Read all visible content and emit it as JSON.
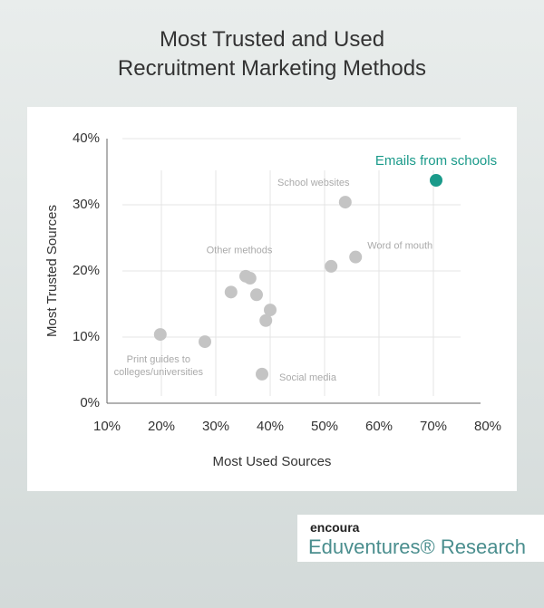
{
  "chart_data": {
    "type": "scatter",
    "title": [
      "Most Trusted and Used",
      "Recruitment Marketing Methods"
    ],
    "x_label": "Most Used Sources",
    "y_label": "Most Trusted Sources",
    "x": [
      70.5,
      53.8,
      55.7,
      51.2,
      35.5,
      36.3,
      32.8,
      37.5,
      40.0,
      39.2,
      19.8,
      28.0,
      38.5
    ],
    "values": [
      33.7,
      30.4,
      22.1,
      20.7,
      19.2,
      18.9,
      16.8,
      16.4,
      14.1,
      12.5,
      10.4,
      9.3,
      4.4
    ],
    "labels": [
      "Emails from schools",
      "School websites",
      "Word of mouth",
      null,
      "Other methods",
      null,
      null,
      null,
      null,
      null,
      [
        "Print guides to",
        "colleges/universities"
      ],
      null,
      "Social media"
    ],
    "colors": [
      "#1a9a8a",
      "#c4c4c4",
      "#c4c4c4",
      "#c4c4c4",
      "#c4c4c4",
      "#c4c4c4",
      "#c4c4c4",
      "#c4c4c4",
      "#c4c4c4",
      "#c4c4c4",
      "#c4c4c4",
      "#c4c4c4",
      "#c4c4c4"
    ],
    "xlim": [
      10,
      80
    ],
    "ylim": [
      0,
      40
    ],
    "xticks": [
      {
        "value": 10,
        "label": "10%"
      },
      {
        "value": 20,
        "label": "20%"
      },
      {
        "value": 30,
        "label": "30%"
      },
      {
        "value": 40,
        "label": "40%"
      },
      {
        "value": 50,
        "label": "50%"
      },
      {
        "value": 60,
        "label": "60%"
      },
      {
        "value": 70,
        "label": "70%"
      },
      {
        "value": 80,
        "label": "80%"
      }
    ],
    "yticks": [
      {
        "value": 0,
        "label": "0%"
      },
      {
        "value": 10,
        "label": "10%"
      },
      {
        "value": 20,
        "label": "20%"
      },
      {
        "value": 30,
        "label": "30%"
      },
      {
        "value": 40,
        "label": "40%"
      }
    ],
    "grid": true
  },
  "footer": {
    "brand": "encoura",
    "publisher": "Eduventures® Research"
  }
}
